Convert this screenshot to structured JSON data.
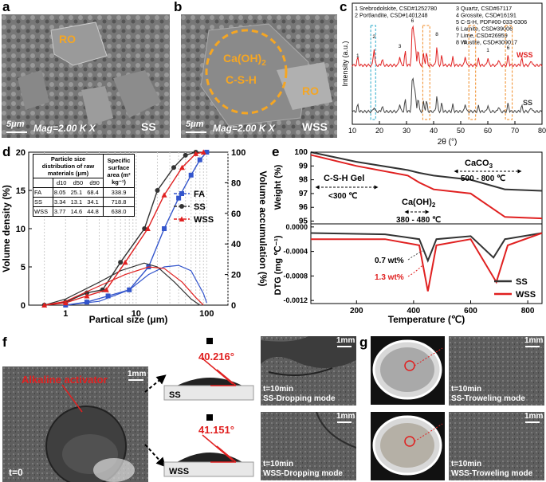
{
  "panels": {
    "a": {
      "label": "a",
      "region": "RO",
      "scale": "5μm",
      "mag": "Mag=2.00 K X",
      "sample": "SS"
    },
    "b": {
      "label": "b",
      "overlay1": "Ca(OH)",
      "overlay1_sub": "2",
      "overlay2": "C-S-H",
      "region": "RO",
      "scale": "5μm",
      "mag": "Mag=2.00 K X",
      "sample": "WSS"
    },
    "c": {
      "label": "c",
      "legend": [
        "1 Srebrodolskite, CSD#1252780",
        "2 Portlandite, CSD#1401248",
        "3 Quartz, CSD#67117",
        "4 Grossite, CSD#16191",
        "5 C-S-H, PDF#00-033-0306",
        "6 Larnite, CSD#39006",
        "7 Lime, CSD#26959",
        "8 Wustite, CSD#309017"
      ],
      "ylabel": "Intensity (a.u.)",
      "xlabel": "2θ (°)",
      "xticks": [
        "10",
        "20",
        "30",
        "40",
        "50",
        "60",
        "70",
        "80"
      ],
      "series_wss": "WSS",
      "series_ss": "SS"
    },
    "d": {
      "label": "d",
      "ylabel_left": "Volume density (%)",
      "ylabel_right": "Volume accumulation (%)",
      "xlabel": "Partical size (μm)",
      "table": {
        "h1": "Particle size distribution of raw materials (μm)",
        "h2": "Specific surface area (m² kg⁻¹)",
        "cols": [
          "d10",
          "d50",
          "d90"
        ],
        "rows": [
          {
            "n": "FA",
            "v": [
              "8.05",
              "25.1",
              "68.4",
              "338.9"
            ]
          },
          {
            "n": "SS",
            "v": [
              "3.34",
              "13.1",
              "34.1",
              "718.8"
            ]
          },
          {
            "n": "WSS",
            "v": [
              "3.77",
              "14.6",
              "44.8",
              "638.0"
            ]
          }
        ]
      },
      "legend": [
        "FA",
        "SS",
        "WSS"
      ],
      "yticks_left": [
        "0",
        "5",
        "10",
        "15",
        "20"
      ],
      "yticks_right": [
        "0",
        "20",
        "40",
        "60",
        "80",
        "100"
      ],
      "xticks": [
        "1",
        "10",
        "100"
      ]
    },
    "e": {
      "label": "e",
      "ylabel_top": "Weight (%)",
      "ylabel_bottom": "DTG (mg ℃⁻¹)",
      "xlabel": "Temperature (℃)",
      "ann1": "CaCO",
      "ann1_sub": "3",
      "ann1_range": "500 - 800 ℃",
      "ann2": "C-S-H Gel",
      "ann2_range": "<300 ℃",
      "ann3": "Ca(OH)",
      "ann3_sub": "2",
      "ann3_range": "380 - 480 ℃",
      "wt1": "0.7 wt%",
      "wt2": "1.3 wt%",
      "legend": [
        "SS",
        "WSS"
      ],
      "yticks_top": [
        "95",
        "96",
        "97",
        "98",
        "99",
        "100"
      ],
      "yticks_bottom": [
        "-0.0012",
        "-0.0008",
        "-0.0004",
        "0.0000"
      ],
      "xticks": [
        "200",
        "400",
        "600",
        "800"
      ]
    },
    "f": {
      "label": "f",
      "activator": "Alkaline activator",
      "t0": "t=0",
      "scale": "1mm",
      "angle1": "40.216°",
      "angle2": "41.151°",
      "tag1": "SS",
      "tag2": "WSS",
      "img1_t": "t=10min",
      "img1_mode": "SS-Dropping mode",
      "img2_t": "t=10min",
      "img2_mode": "WSS-Dropping mode"
    },
    "g": {
      "label": "g",
      "scale": "1mm",
      "img1_t": "t=10min",
      "img1_mode": "SS-Troweling mode",
      "img2_t": "t=10min",
      "img2_mode": "WSS-Troweling mode"
    }
  },
  "chart_data": [
    {
      "type": "line",
      "title": "",
      "xlabel": "2θ (°)",
      "ylabel": "Intensity (a.u.)",
      "xlim": [
        10,
        80
      ],
      "series": [
        {
          "name": "WSS",
          "color": "#e02020"
        },
        {
          "name": "SS",
          "color": "#444444"
        }
      ]
    },
    {
      "type": "line",
      "xlabel": "Partical size (μm)",
      "ylabel": "Volume density (%)",
      "xscale": "log",
      "xlim": [
        0.3,
        200
      ],
      "ylim": [
        0,
        20
      ],
      "y2lim": [
        0,
        100
      ],
      "series": [
        {
          "name": "FA",
          "color": "#3355cc",
          "cumulative": [
            [
              1,
              0
            ],
            [
              2,
              2
            ],
            [
              4,
              6
            ],
            [
              8,
              10
            ],
            [
              15,
              25
            ],
            [
              25,
              50
            ],
            [
              40,
              70
            ],
            [
              60,
              85
            ],
            [
              80,
              95
            ],
            [
              100,
              100
            ]
          ],
          "density": [
            [
              1,
              0
            ],
            [
              3,
              0.5
            ],
            [
              8,
              2
            ],
            [
              15,
              4
            ],
            [
              25,
              5
            ],
            [
              40,
              5.2
            ],
            [
              60,
              4.5
            ],
            [
              90,
              1.5
            ],
            [
              100,
              0.3
            ]
          ]
        },
        {
          "name": "SS",
          "color": "#333333",
          "cumulative": [
            [
              0.5,
              0
            ],
            [
              1,
              2
            ],
            [
              2,
              8
            ],
            [
              3.34,
              10
            ],
            [
              6,
              28
            ],
            [
              13.1,
              50
            ],
            [
              20,
              75
            ],
            [
              34.1,
              90
            ],
            [
              50,
              98
            ],
            [
              70,
              100
            ]
          ],
          "density": [
            [
              0.5,
              0
            ],
            [
              1,
              0.8
            ],
            [
              3,
              3
            ],
            [
              6,
              4.5
            ],
            [
              13,
              5.5
            ],
            [
              20,
              5
            ],
            [
              35,
              3
            ],
            [
              60,
              0.8
            ],
            [
              80,
              0
            ]
          ]
        },
        {
          "name": "WSS",
          "color": "#e02020",
          "cumulative": [
            [
              0.5,
              0
            ],
            [
              1,
              1.5
            ],
            [
              2,
              6
            ],
            [
              3.77,
              10
            ],
            [
              7,
              28
            ],
            [
              14.6,
              50
            ],
            [
              25,
              72
            ],
            [
              44.8,
              90
            ],
            [
              70,
              99
            ],
            [
              90,
              100
            ]
          ],
          "density": [
            [
              0.5,
              0
            ],
            [
              1,
              0.5
            ],
            [
              3,
              2.5
            ],
            [
              7,
              4
            ],
            [
              15,
              5
            ],
            [
              25,
              4.8
            ],
            [
              45,
              3
            ],
            [
              70,
              1
            ],
            [
              90,
              0
            ]
          ]
        }
      ]
    },
    {
      "type": "line",
      "xlabel": "Temperature (℃)",
      "ylabel": "Weight (%)",
      "xlim": [
        40,
        850
      ],
      "ylim": [
        94.8,
        100
      ],
      "series": [
        {
          "name": "SS",
          "color": "#333333",
          "weight": [
            [
              40,
              100
            ],
            [
              200,
              99.3
            ],
            [
              380,
              98.7
            ],
            [
              420,
              98.5
            ],
            [
              470,
              98.3
            ],
            [
              600,
              98.0
            ],
            [
              720,
              97.3
            ],
            [
              850,
              97.2
            ]
          ],
          "dtg": [
            [
              40,
              -0.0001
            ],
            [
              300,
              -0.00012
            ],
            [
              420,
              -0.0002
            ],
            [
              450,
              -0.00055
            ],
            [
              480,
              -0.0002
            ],
            [
              600,
              -0.00015
            ],
            [
              680,
              -0.0005
            ],
            [
              720,
              -0.0002
            ],
            [
              850,
              -0.0001
            ]
          ]
        },
        {
          "name": "WSS",
          "color": "#e02020",
          "weight": [
            [
              40,
              99.8
            ],
            [
              200,
              99.0
            ],
            [
              380,
              98.3
            ],
            [
              420,
              97.8
            ],
            [
              470,
              97.3
            ],
            [
              600,
              97.0
            ],
            [
              720,
              95.3
            ],
            [
              850,
              95.2
            ]
          ],
          "dtg": [
            [
              40,
              -0.0002
            ],
            [
              300,
              -0.0002
            ],
            [
              420,
              -0.0003
            ],
            [
              450,
              -0.00105
            ],
            [
              480,
              -0.0003
            ],
            [
              600,
              -0.0002
            ],
            [
              690,
              -0.0009
            ],
            [
              730,
              -0.0003
            ],
            [
              850,
              -0.0001
            ]
          ]
        }
      ]
    }
  ]
}
